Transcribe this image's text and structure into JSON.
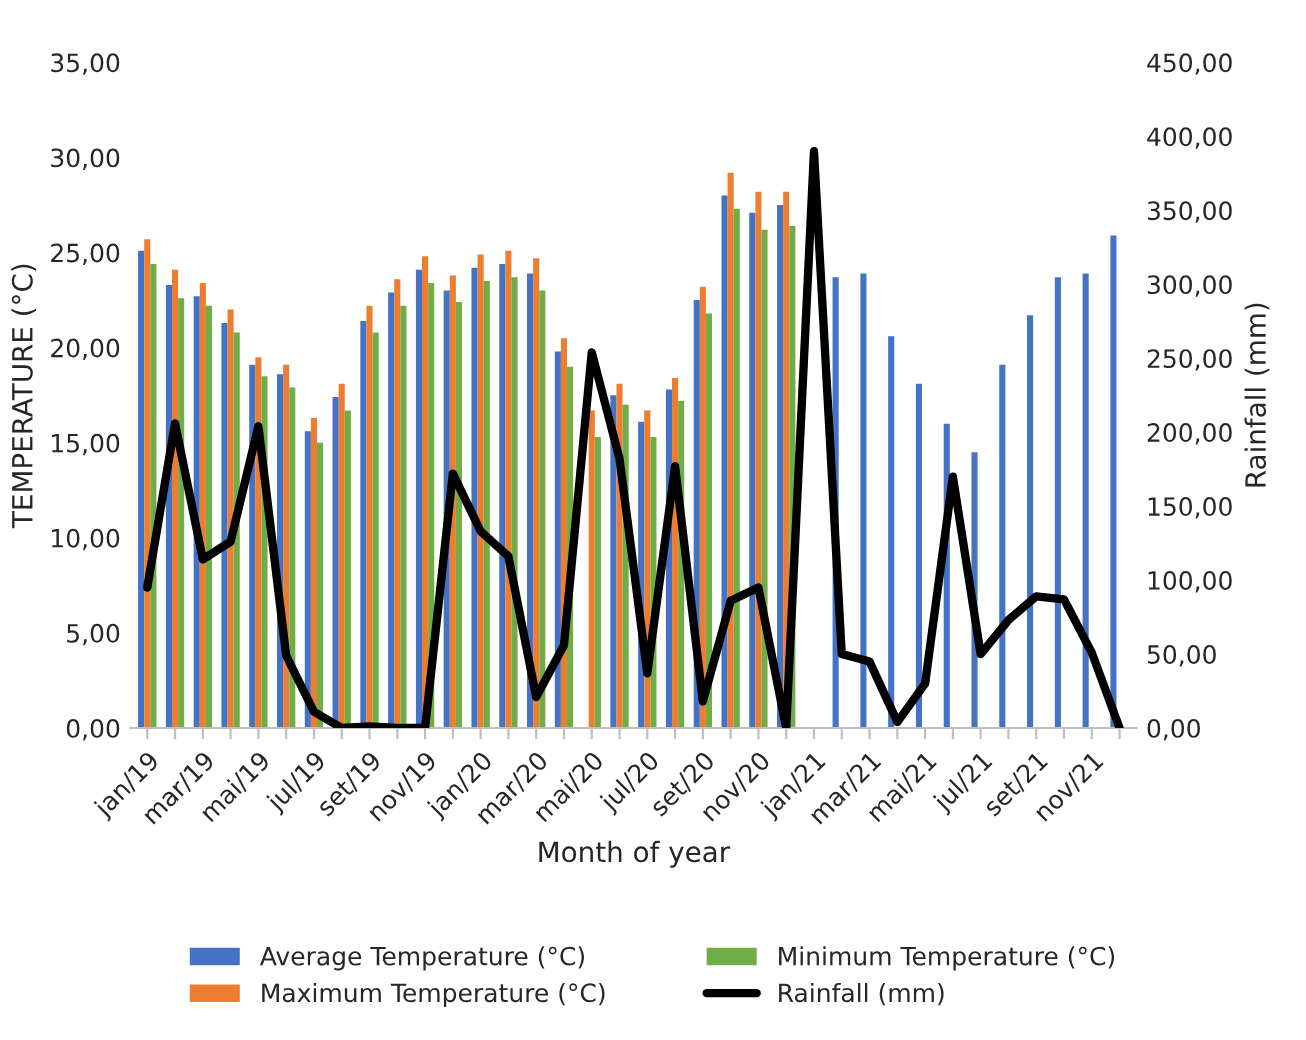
{
  "chart_data": {
    "type": "bar",
    "categories": [
      "jan/19",
      null,
      "mar/19",
      null,
      "mai/19",
      null,
      "jul/19",
      null,
      "set/19",
      null,
      "nov/19",
      null,
      "jan/20",
      null,
      "mar/20",
      null,
      "mai/20",
      null,
      "jul/20",
      null,
      "set/20",
      null,
      "nov/20",
      null,
      "jan/21",
      null,
      "mar/21",
      null,
      "mai/21",
      null,
      "jul/21",
      null,
      "set/21",
      null,
      "nov/21",
      null
    ],
    "xlabel": "Month of year",
    "ylabel": "TEMPERATURE (°C)",
    "y2label": "Rainfall (mm)",
    "series": [
      {
        "name": "Average Temperature (°C)",
        "color": "#4472c4",
        "values": [
          25.1,
          23.3,
          22.7,
          21.3,
          19.1,
          18.6,
          15.6,
          17.4,
          21.4,
          22.9,
          24.1,
          23.0,
          24.2,
          24.4,
          23.9,
          19.8,
          null,
          17.5,
          16.1,
          17.8,
          22.5,
          28.0,
          27.1,
          27.5,
          null,
          23.7,
          23.9,
          20.6,
          18.1,
          16.0,
          14.5,
          19.1,
          21.7,
          23.7,
          23.9,
          25.9
        ]
      },
      {
        "name": "Maximum Temperature (°C)",
        "color": "#ed7d31",
        "values": [
          25.7,
          24.1,
          23.4,
          22.0,
          19.5,
          19.1,
          16.3,
          18.1,
          22.2,
          23.6,
          24.8,
          23.8,
          24.9,
          25.1,
          24.7,
          20.5,
          16.7,
          18.1,
          16.7,
          18.4,
          23.2,
          29.2,
          28.2,
          28.2,
          null,
          null,
          null,
          null,
          null,
          null,
          null,
          null,
          null,
          null,
          null,
          null
        ]
      },
      {
        "name": "Minimum Temperature (°C)",
        "color": "#70ad47",
        "values": [
          24.4,
          22.6,
          22.2,
          20.8,
          18.5,
          17.9,
          15.0,
          16.7,
          20.8,
          22.2,
          23.4,
          22.4,
          23.5,
          23.7,
          23.0,
          19.0,
          15.3,
          17.0,
          15.3,
          17.2,
          21.8,
          27.3,
          26.2,
          26.4,
          null,
          null,
          null,
          null,
          null,
          null,
          null,
          null,
          null,
          null,
          null,
          null
        ]
      },
      {
        "name": "Rainfall (mm)",
        "type": "line",
        "axis": "y2",
        "color": "#000000",
        "values": [
          95,
          206,
          114,
          126,
          204,
          49,
          11,
          0,
          1,
          0,
          0,
          172,
          133,
          116,
          21,
          56,
          254,
          182,
          37,
          177,
          18,
          86,
          95,
          0,
          390,
          50,
          45,
          4,
          30,
          170,
          50,
          73,
          89,
          87,
          51,
          0
        ]
      }
    ],
    "ylim": [
      0,
      35
    ],
    "yticks": [
      {
        "value": 0,
        "label": "0,00"
      },
      {
        "value": 5,
        "label": "5,00"
      },
      {
        "value": 10,
        "label": "10,00"
      },
      {
        "value": 15,
        "label": "15,00"
      },
      {
        "value": 20,
        "label": "20,00"
      },
      {
        "value": 25,
        "label": "25,00"
      },
      {
        "value": 30,
        "label": "30,00"
      },
      {
        "value": 35,
        "label": "35,00"
      }
    ],
    "y2lim": [
      0,
      450
    ],
    "y2ticks": [
      {
        "value": 0,
        "label": "0,00"
      },
      {
        "value": 50,
        "label": "50,00"
      },
      {
        "value": 100,
        "label": "100,00"
      },
      {
        "value": 150,
        "label": "150,00"
      },
      {
        "value": 200,
        "label": "200,00"
      },
      {
        "value": 250,
        "label": "250,00"
      },
      {
        "value": 300,
        "label": "300,00"
      },
      {
        "value": 350,
        "label": "350,00"
      },
      {
        "value": 400,
        "label": "400,00"
      },
      {
        "value": 450,
        "label": "450,00"
      }
    ],
    "legend": "bottom",
    "grid": false,
    "line_style": "solid",
    "marker": "none"
  }
}
